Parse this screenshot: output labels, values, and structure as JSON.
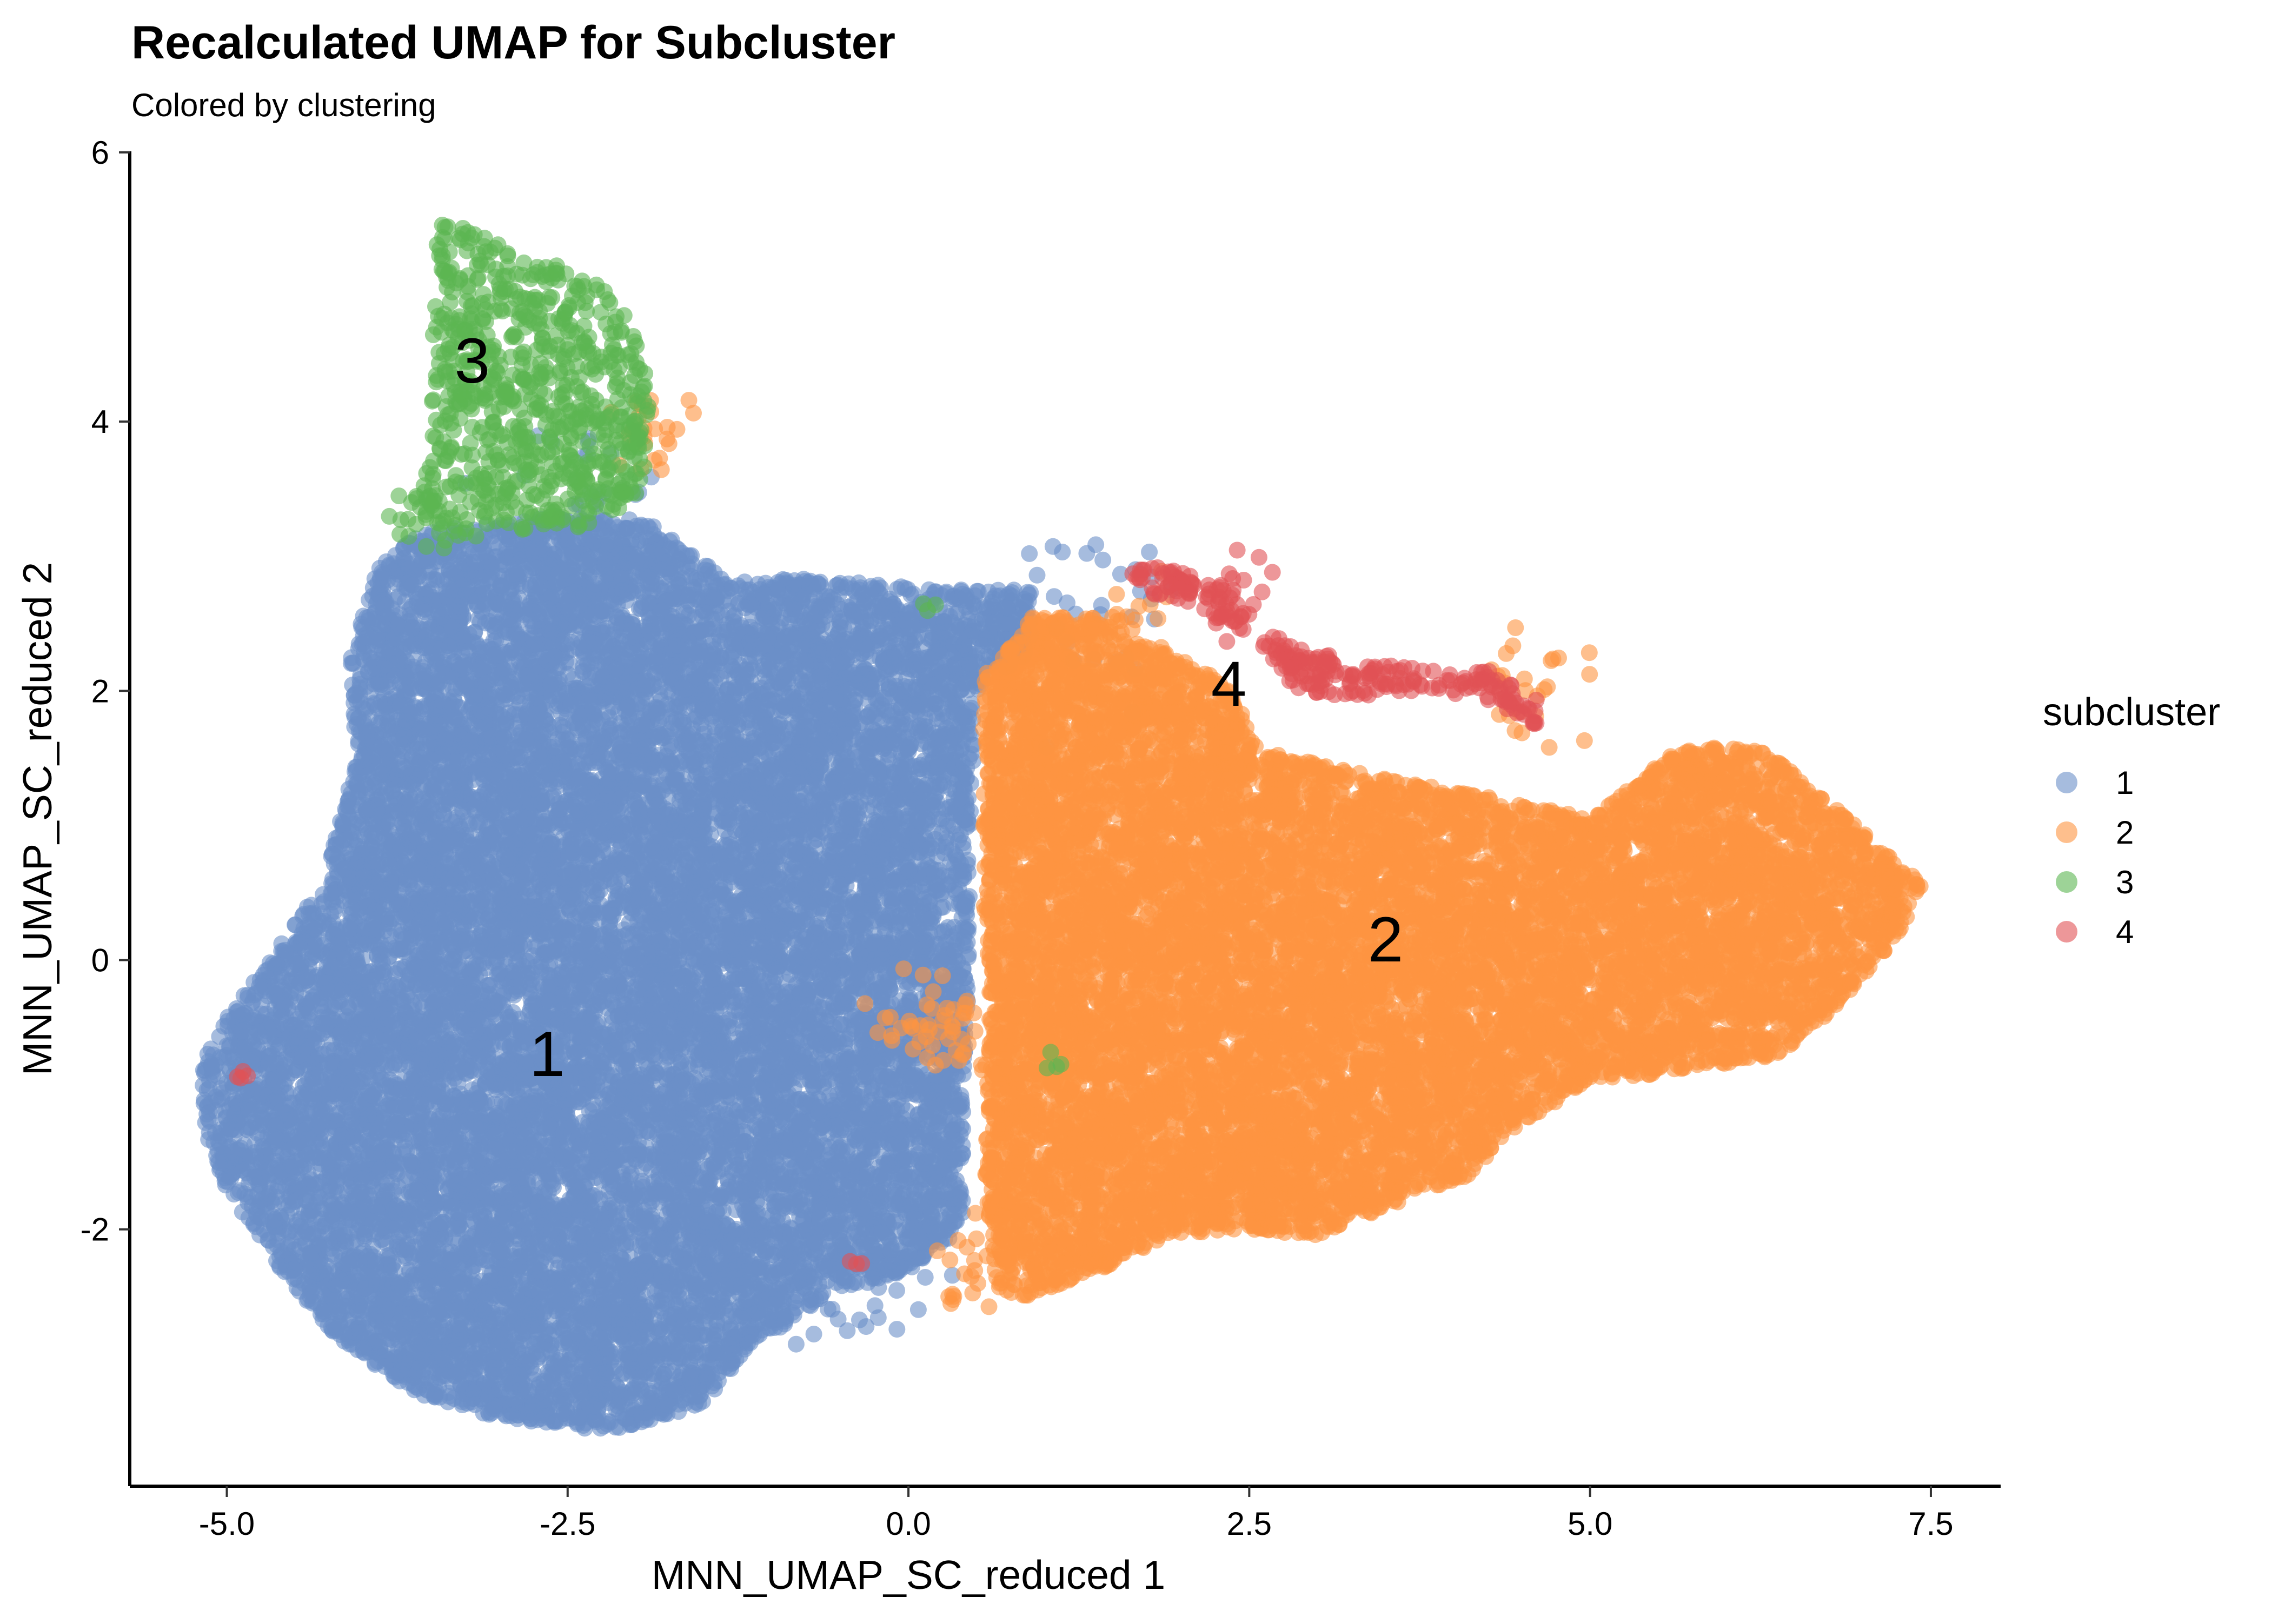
{
  "chart_data": {
    "type": "scatter",
    "title": "Recalculated UMAP for Subcluster",
    "subtitle": "Colored by clustering",
    "xlabel": "MNN_UMAP_SC_reduced 1",
    "ylabel": "MNN_UMAP_SC_reduced 2",
    "xlim": [
      -5.7,
      8.0
    ],
    "ylim": [
      -3.9,
      6.0
    ],
    "xticks": [
      -5.0,
      -2.5,
      0.0,
      2.5,
      5.0,
      7.5
    ],
    "xtick_labels": [
      "-5.0",
      "-2.5",
      "0.0",
      "2.5",
      "5.0",
      "7.5"
    ],
    "yticks": [
      -2,
      0,
      2,
      4,
      6
    ],
    "ytick_labels": [
      "-2",
      "0",
      "2",
      "4",
      "6"
    ],
    "grid": false,
    "legend": {
      "title": "subcluster",
      "position": "right",
      "entries": [
        "1",
        "2",
        "3",
        "4"
      ]
    },
    "series": [
      {
        "name": "1",
        "color": "#6a8fc8",
        "label_position": [
          -2.65,
          -0.7
        ],
        "region": "large cloud spanning x -5.2 to 0.8, y -3.4 to 3.3"
      },
      {
        "name": "2",
        "color": "#fd9541",
        "label_position": [
          3.5,
          0.15
        ],
        "region": "wedge spanning x 0.5 to 7.5, y -2.5 to 2.6"
      },
      {
        "name": "3",
        "color": "#5cb651",
        "label_position": [
          -3.2,
          4.45
        ],
        "region": "small cluster at top-left x -3.6 to -1.9, y 3.0 to 5.5"
      },
      {
        "name": "4",
        "color": "#e15155",
        "label_position": [
          2.35,
          2.05
        ],
        "region": "thin arc x 1.6 to 4.7, y 1.7 to 2.95"
      }
    ],
    "cluster_labels": [
      "1",
      "2",
      "3",
      "4"
    ]
  }
}
